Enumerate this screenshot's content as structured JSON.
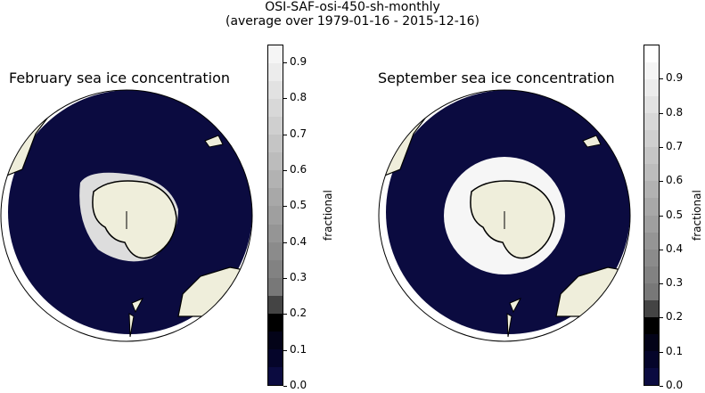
{
  "figure": {
    "title_line1": "OSI-SAF-osi-450-sh-monthly",
    "title_line2": "(average over 1979-01-16 - 2015-12-16)"
  },
  "panels": [
    {
      "title": "February sea ice concentration",
      "colorbar": {
        "label": "fractional",
        "ticks": [
          "0.0",
          "0.1",
          "0.2",
          "0.3",
          "0.4",
          "0.5",
          "0.6",
          "0.7",
          "0.8",
          "0.9"
        ],
        "max": 0.95
      }
    },
    {
      "title": "September sea ice concentration",
      "colorbar": {
        "label": "fractional",
        "ticks": [
          "0.0",
          "0.1",
          "0.2",
          "0.3",
          "0.4",
          "0.5",
          "0.6",
          "0.7",
          "0.8",
          "0.9"
        ],
        "max": 1.0
      }
    }
  ],
  "colors": {
    "ocean_low": "#0b0b40",
    "land": "#efeedb",
    "coast": "#000000",
    "ice": "#ffffff"
  }
}
